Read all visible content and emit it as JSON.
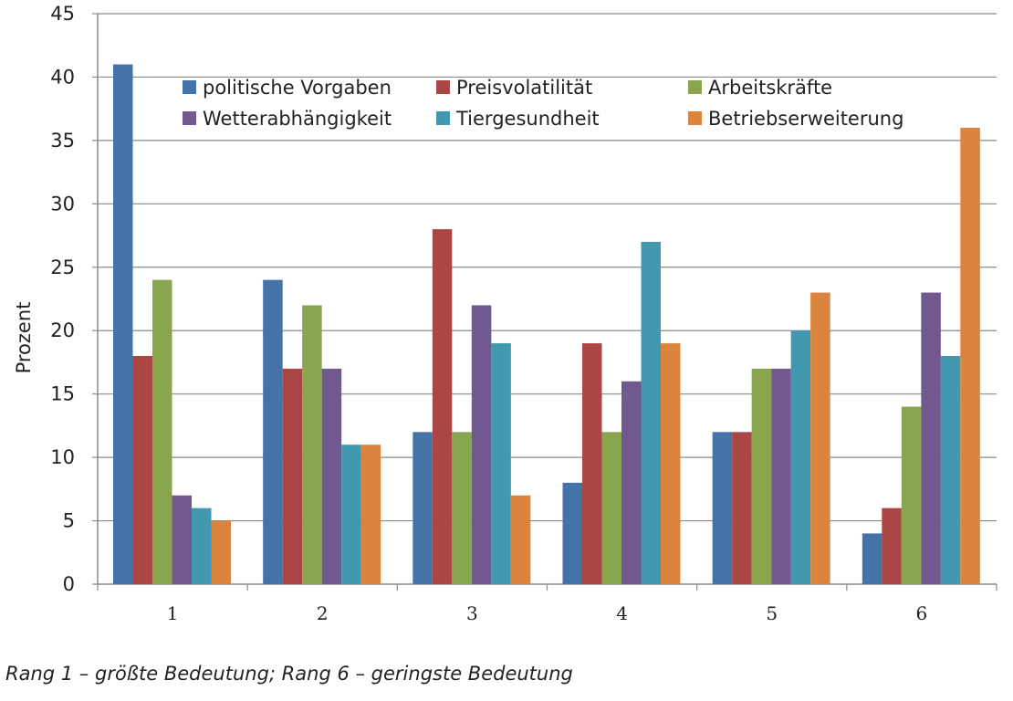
{
  "chart_data": {
    "type": "bar",
    "categories": [
      "1",
      "2",
      "3",
      "4",
      "5",
      "6"
    ],
    "series": [
      {
        "name": "politische Vorgaben",
        "color": "#4572A7",
        "values": [
          41,
          24,
          12,
          8,
          12,
          4
        ]
      },
      {
        "name": "Preisvolatilität",
        "color": "#AA4643",
        "values": [
          18,
          17,
          28,
          19,
          12,
          6
        ]
      },
      {
        "name": "Arbeitskräfte",
        "color": "#89A54E",
        "values": [
          24,
          22,
          12,
          12,
          17,
          14
        ]
      },
      {
        "name": "Wetterabhängigkeit",
        "color": "#71588F",
        "values": [
          7,
          17,
          22,
          16,
          17,
          23
        ]
      },
      {
        "name": "Tiergesundheit",
        "color": "#4198AF",
        "values": [
          6,
          11,
          19,
          27,
          20,
          18
        ]
      },
      {
        "name": "Betriebserweiterung",
        "color": "#DB843D",
        "values": [
          5,
          11,
          7,
          19,
          23,
          36
        ]
      }
    ],
    "yticks": [
      "0",
      "5",
      "10",
      "15",
      "20",
      "25",
      "30",
      "35",
      "40",
      "45"
    ],
    "ylabel": "Prozent",
    "xlabel": "",
    "title": "",
    "ylim": [
      0,
      45
    ],
    "grid": true,
    "legend_position": "top-inside"
  },
  "caption": "Rang 1 – größte Bedeutung; Rang 6 – geringste Bedeutung"
}
